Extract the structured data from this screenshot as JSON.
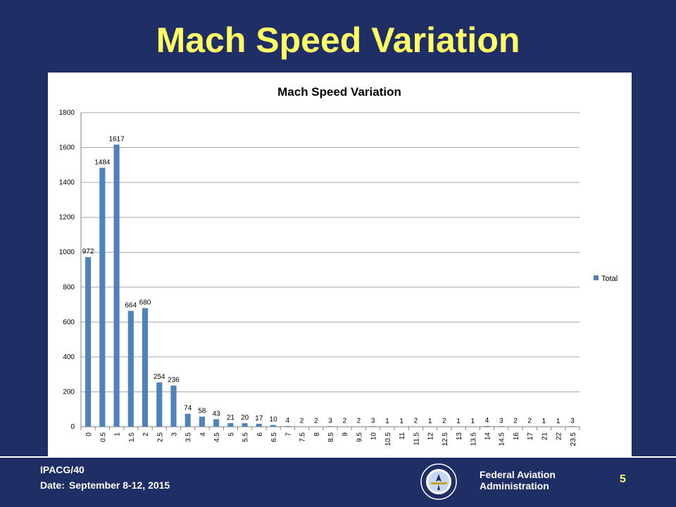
{
  "slide": {
    "title": "Mach Speed Variation",
    "meeting": "IPACG/40",
    "date_label": "Date:",
    "date_value": "September 8-12, 2015",
    "org_line1": "Federal Aviation",
    "org_line2": "Administration",
    "page_number": "5"
  },
  "colors": {
    "background": "#1f2f66",
    "title": "#ffff66",
    "bar": "#4f81bd"
  },
  "chart_data": {
    "type": "bar",
    "title": "Mach Speed Variation",
    "xlabel": "",
    "ylabel": "",
    "ylim": [
      0,
      1800
    ],
    "yticks": [
      0,
      200,
      400,
      600,
      800,
      1000,
      1200,
      1400,
      1600,
      1800
    ],
    "grid": true,
    "legend_position": "right",
    "categories": [
      "0",
      "0.5",
      "1",
      "1.5",
      "2",
      "2.5",
      "3",
      "3.5",
      "4",
      "4.5",
      "5",
      "5.5",
      "6",
      "6.5",
      "7",
      "7.5",
      "8",
      "8.5",
      "9",
      "9.5",
      "10",
      "10.5",
      "11",
      "11.5",
      "12",
      "12.5",
      "13",
      "13.5",
      "14",
      "14.5",
      "16",
      "17",
      "21",
      "22",
      "23.5"
    ],
    "series": [
      {
        "name": "Total",
        "values": [
          972,
          1484,
          1617,
          664,
          680,
          254,
          236,
          74,
          58,
          43,
          21,
          20,
          17,
          10,
          4,
          2,
          2,
          3,
          2,
          2,
          3,
          1,
          1,
          2,
          1,
          2,
          1,
          1,
          4,
          3,
          2,
          2,
          1,
          1,
          3
        ]
      }
    ]
  }
}
